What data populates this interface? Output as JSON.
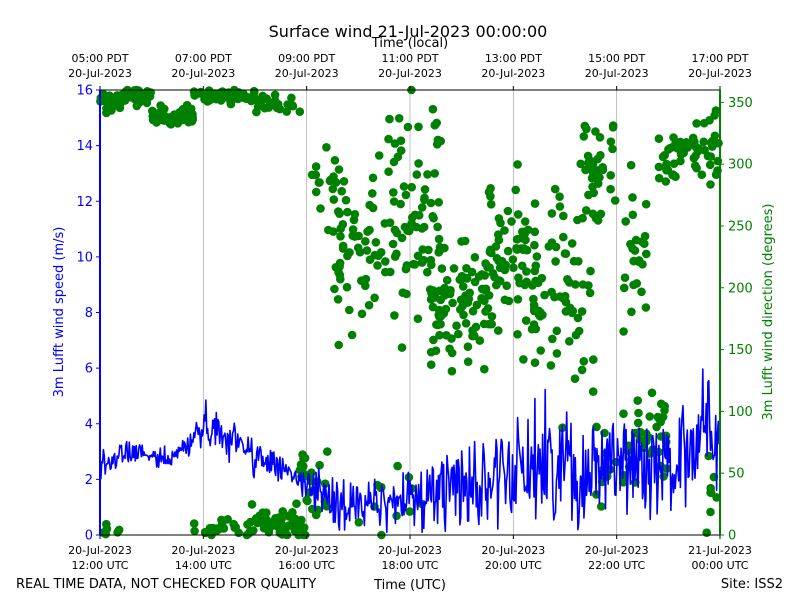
{
  "chart_data": {
    "type": "line+scatter",
    "title": "Surface wind 21-Jul-2023 00:00:00",
    "xlabel": "Time (UTC)",
    "top_xlabel": "Time (local)",
    "ylabel_left": "3m Lufft wind speed (m/s)",
    "ylabel_right": "3m Lufft wind direction (degrees)",
    "footer_left": "REAL TIME DATA, NOT CHECKED FOR QUALITY",
    "footer_right": "Site: ISS2",
    "xlim_hours_utc": [
      12,
      24
    ],
    "ylim_left": [
      0,
      16
    ],
    "ylim_right": [
      0,
      360
    ],
    "grid": "vertical at bottom ticks",
    "bottom_ticks": [
      {
        "hour": 12,
        "line1": "20-Jul-2023",
        "line2": "12:00 UTC"
      },
      {
        "hour": 14,
        "line1": "20-Jul-2023",
        "line2": "14:00 UTC"
      },
      {
        "hour": 16,
        "line1": "20-Jul-2023",
        "line2": "16:00 UTC"
      },
      {
        "hour": 18,
        "line1": "20-Jul-2023",
        "line2": "18:00 UTC"
      },
      {
        "hour": 20,
        "line1": "20-Jul-2023",
        "line2": "20:00 UTC"
      },
      {
        "hour": 22,
        "line1": "20-Jul-2023",
        "line2": "22:00 UTC"
      },
      {
        "hour": 24,
        "line1": "21-Jul-2023",
        "line2": "00:00 UTC"
      }
    ],
    "top_ticks": [
      {
        "hour": 12,
        "line1": "05:00 PDT",
        "line2": "20-Jul-2023"
      },
      {
        "hour": 14,
        "line1": "07:00 PDT",
        "line2": "20-Jul-2023"
      },
      {
        "hour": 16,
        "line1": "09:00 PDT",
        "line2": "20-Jul-2023"
      },
      {
        "hour": 18,
        "line1": "11:00 PDT",
        "line2": "20-Jul-2023"
      },
      {
        "hour": 20,
        "line1": "13:00 PDT",
        "line2": "20-Jul-2023"
      },
      {
        "hour": 22,
        "line1": "15:00 PDT",
        "line2": "20-Jul-2023"
      },
      {
        "hour": 24,
        "line1": "17:00 PDT",
        "line2": "20-Jul-2023"
      }
    ],
    "left_ticks": [
      "0",
      "2",
      "4",
      "6",
      "8",
      "10",
      "12",
      "14",
      "16"
    ],
    "right_ticks": [
      "0",
      "50",
      "100",
      "150",
      "200",
      "250",
      "300",
      "350"
    ],
    "colors": {
      "speed": "#0000ff",
      "direction": "#008000",
      "grid": "#b0b0b0",
      "axes": "#000000"
    },
    "series": [
      {
        "name": "wind speed (m/s)",
        "kind": "line",
        "x_hours": [
          12.0,
          12.25,
          12.5,
          12.75,
          13.0,
          13.25,
          13.5,
          13.75,
          14.0,
          14.25,
          14.5,
          14.75,
          15.0,
          15.25,
          15.5,
          15.75,
          16.0,
          16.25,
          16.5,
          16.75,
          17.0,
          17.25,
          17.5,
          17.75,
          18.0,
          18.25,
          18.5,
          18.75,
          19.0,
          19.25,
          19.5,
          19.75,
          20.0,
          20.25,
          20.5,
          20.75,
          21.0,
          21.25,
          21.5,
          21.75,
          22.0,
          22.25,
          22.5,
          22.75,
          23.0,
          23.25,
          23.5,
          23.75,
          24.0
        ],
        "y_base": [
          2.5,
          2.6,
          3.0,
          2.9,
          2.8,
          2.7,
          2.9,
          3.4,
          3.9,
          3.8,
          3.6,
          3.2,
          2.9,
          2.6,
          2.4,
          2.1,
          1.7,
          1.5,
          1.3,
          1.1,
          1.2,
          1.0,
          1.1,
          1.2,
          1.3,
          1.4,
          1.6,
          1.8,
          2.0,
          1.9,
          1.7,
          1.9,
          2.3,
          2.6,
          2.5,
          2.4,
          2.6,
          2.2,
          2.5,
          3.0,
          2.8,
          2.6,
          2.5,
          2.4,
          2.6,
          3.1,
          3.6,
          4.0,
          3.5
        ],
        "y_noise": [
          0.35,
          0.35,
          0.35,
          0.35,
          0.35,
          0.35,
          0.4,
          0.45,
          0.5,
          0.5,
          0.5,
          0.5,
          0.5,
          0.45,
          0.45,
          0.45,
          0.5,
          0.6,
          0.7,
          0.7,
          0.7,
          0.7,
          0.7,
          0.7,
          0.8,
          0.9,
          1.0,
          1.1,
          1.3,
          1.3,
          1.3,
          1.4,
          1.5,
          1.5,
          1.5,
          1.5,
          1.6,
          1.6,
          1.6,
          1.6,
          1.5,
          1.5,
          1.5,
          1.4,
          1.5,
          1.6,
          1.7,
          1.7,
          1.5
        ],
        "samples": 720
      },
      {
        "name": "wind direction (degrees)",
        "kind": "scatter",
        "clusters": [
          {
            "t0": 12.0,
            "t1": 12.4,
            "center": 350,
            "spread": 6,
            "n": 35
          },
          {
            "t0": 12.0,
            "t1": 12.5,
            "center": 5,
            "spread": 5,
            "n": 6
          },
          {
            "t0": 12.4,
            "t1": 13.0,
            "center": 355,
            "spread": 6,
            "n": 30
          },
          {
            "t0": 13.0,
            "t1": 13.8,
            "center": 338,
            "spread": 6,
            "n": 45
          },
          {
            "t0": 13.8,
            "t1": 15.0,
            "center": 355,
            "spread": 4,
            "n": 55
          },
          {
            "t0": 13.8,
            "t1": 15.0,
            "center": 6,
            "spread": 5,
            "n": 25
          },
          {
            "t0": 15.0,
            "t1": 15.9,
            "center": 350,
            "spread": 6,
            "n": 25
          },
          {
            "t0": 14.9,
            "t1": 16.0,
            "center": 10,
            "spread": 9,
            "n": 55
          },
          {
            "t0": 15.8,
            "t1": 16.4,
            "center": 40,
            "spread": 18,
            "n": 30
          },
          {
            "t0": 16.1,
            "t1": 16.7,
            "center": 285,
            "spread": 15,
            "n": 18
          },
          {
            "t0": 16.4,
            "t1": 17.4,
            "center": 240,
            "spread": 45,
            "n": 55
          },
          {
            "t0": 17.4,
            "t1": 18.6,
            "center": 260,
            "spread": 65,
            "n": 80
          },
          {
            "t0": 17.0,
            "t1": 18.4,
            "center": 30,
            "spread": 30,
            "n": 12
          },
          {
            "t0": 18.4,
            "t1": 19.6,
            "center": 190,
            "spread": 35,
            "n": 90
          },
          {
            "t0": 19.5,
            "t1": 20.5,
            "center": 225,
            "spread": 45,
            "n": 70
          },
          {
            "t0": 20.4,
            "t1": 21.6,
            "center": 200,
            "spread": 60,
            "n": 70
          },
          {
            "t0": 21.3,
            "t1": 22.0,
            "center": 300,
            "spread": 30,
            "n": 30
          },
          {
            "t0": 21.6,
            "t1": 22.4,
            "center": 60,
            "spread": 30,
            "n": 20
          },
          {
            "t0": 22.0,
            "t1": 22.6,
            "center": 230,
            "spread": 35,
            "n": 25
          },
          {
            "t0": 22.4,
            "t1": 23.0,
            "center": 80,
            "spread": 25,
            "n": 30
          },
          {
            "t0": 22.8,
            "t1": 24.0,
            "center": 310,
            "spread": 20,
            "n": 60
          },
          {
            "t0": 23.7,
            "t1": 24.0,
            "center": 30,
            "spread": 20,
            "n": 8
          }
        ]
      }
    ]
  }
}
